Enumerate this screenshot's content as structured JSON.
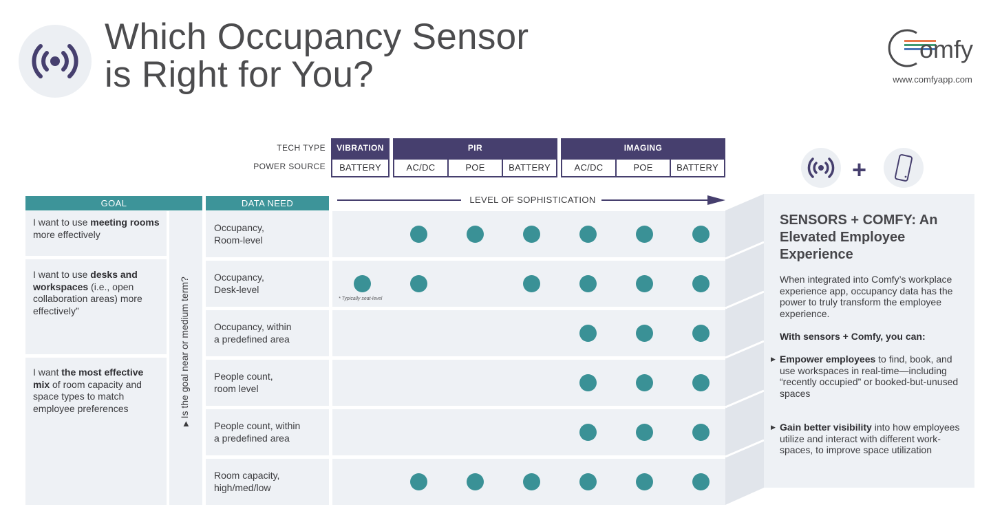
{
  "header": {
    "title_line1": "Which Occupancy Sensor",
    "title_line2": "is Right for You?",
    "brand_name": "Comfy",
    "brand_url": "www.comfyapp.com"
  },
  "sensor_header": {
    "tech_type_label": "TECH TYPE",
    "power_source_label": "POWER SOURCE",
    "groups": [
      {
        "tech": "VIBRATION",
        "power": [
          "BATTERY"
        ]
      },
      {
        "tech": "PIR",
        "power": [
          "AC/DC",
          "POE",
          "BATTERY"
        ]
      },
      {
        "tech": "IMAGING",
        "power": [
          "AC/DC",
          "POE",
          "BATTERY"
        ]
      }
    ]
  },
  "table": {
    "goal_header": "GOAL",
    "data_need_header": "DATA NEED",
    "sophistication_label": "LEVEL OF SOPHISTICATION",
    "vertical_question": "Is the goal near or medium term?",
    "goals": [
      {
        "pre": "I want to use ",
        "bold": "meeting rooms",
        "post": " more effectively"
      },
      {
        "pre": "I want to use ",
        "bold": "desks and workspaces",
        "post": " (i.e., open collaboration areas) more effectively”"
      },
      {
        "pre": "I want ",
        "bold": "the most effective mix",
        "post": " of room capacity and space types to match employee preferences"
      }
    ],
    "rows": [
      {
        "need_line1": "Occupancy,",
        "need_line2": "Room-level",
        "dots": [
          0,
          1,
          1,
          1,
          1,
          1,
          1
        ]
      },
      {
        "need_line1": "Occupancy,",
        "need_line2": "Desk-level",
        "dots": [
          1,
          1,
          0,
          1,
          1,
          1,
          1
        ]
      },
      {
        "need_line1": "Occupancy, within",
        "need_line2": "a predefined area",
        "dots": [
          0,
          0,
          0,
          0,
          1,
          1,
          1
        ]
      },
      {
        "need_line1": "People count,",
        "need_line2": "room level",
        "dots": [
          0,
          0,
          0,
          0,
          1,
          1,
          1
        ]
      },
      {
        "need_line1": "People count, within",
        "need_line2": "a predefined area",
        "dots": [
          0,
          0,
          0,
          0,
          1,
          1,
          1
        ]
      },
      {
        "need_line1": "Room capacity,",
        "need_line2": "high/med/low",
        "dots": [
          0,
          1,
          1,
          1,
          1,
          1,
          1
        ]
      }
    ],
    "footnote": "* Typically seat-level"
  },
  "side_panel": {
    "title": "SENSORS + COMFY: An Elevated Employee Experience",
    "intro": "When integrated into Comfy’s workplace experience app,  occupancy data has the power to truly transform the employee experience.",
    "subhead": "With sensors + Comfy, you can:",
    "bullets": [
      {
        "bold": "Empower employees",
        "text": " to find, book, and use workspaces in real-time—including “recently occupied” or booked-but-unused spaces"
      },
      {
        "bold": "Gain better visibility",
        "text": " into how employees utilize and interact with different work-spaces, to improve space utilization"
      }
    ]
  },
  "icons": {
    "hero": "sensor-waves-icon",
    "sensor": "sensor-waves-icon",
    "plus": "plus-icon",
    "phone": "phone-icon",
    "bullet": "triangle-right-icon"
  },
  "colors": {
    "purple": "#463f6e",
    "teal": "#3d9499",
    "panel_bg": "#eef1f5",
    "brand_orange": "#e8774a",
    "brand_green": "#3f9a73",
    "brand_blue": "#4b77b8"
  }
}
